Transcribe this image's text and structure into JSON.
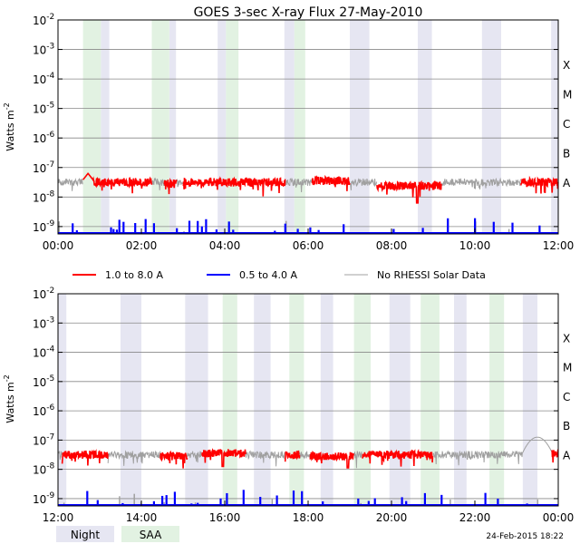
{
  "title": "GOES 3-sec X-ray Flux   27-May-2010",
  "ylabel": "Watts m",
  "ylabel_exp": "-2",
  "footer_date": "24-Feb-2015 18:22",
  "colors": {
    "long": "#ff0000",
    "short": "#0000ff",
    "no_rhessi": "#a0a0a0",
    "night": "#e6e6f2",
    "saa": "#e2f2e2",
    "grid": "#888888"
  },
  "legend": {
    "long": "1.0 to 8.0 A",
    "short": "0.5 to 4.0 A",
    "no_rhessi": "No RHESSI Solar Data",
    "night": "Night",
    "saa": "SAA"
  },
  "y_ticks": [
    {
      "exp": -2,
      "base": "10",
      "sup": "-2"
    },
    {
      "exp": -3,
      "base": "10",
      "sup": "-3"
    },
    {
      "exp": -4,
      "base": "10",
      "sup": "-4"
    },
    {
      "exp": -5,
      "base": "10",
      "sup": "-5"
    },
    {
      "exp": -6,
      "base": "10",
      "sup": "-6"
    },
    {
      "exp": -7,
      "base": "10",
      "sup": "-7"
    },
    {
      "exp": -8,
      "base": "10",
      "sup": "-8"
    },
    {
      "exp": -9,
      "base": "10",
      "sup": "-9"
    }
  ],
  "flare_classes": [
    {
      "label": "X",
      "exp": -4
    },
    {
      "label": "M",
      "exp": -5
    },
    {
      "label": "C",
      "exp": -6
    },
    {
      "label": "B",
      "exp": -7
    },
    {
      "label": "A",
      "exp": -8
    }
  ],
  "chart_data": [
    {
      "type": "line",
      "panel": "top",
      "x_range_hours": [
        0,
        12
      ],
      "x_ticks": [
        "00:00",
        "02:00",
        "04:00",
        "06:00",
        "08:00",
        "10:00",
        "12:00"
      ],
      "y_log_range": [
        -9.25,
        -2
      ],
      "night_intervals": [
        [
          1.03,
          1.23
        ],
        [
          2.67,
          2.83
        ],
        [
          3.83,
          4.03
        ],
        [
          5.43,
          5.67
        ],
        [
          7.0,
          7.47
        ],
        [
          8.63,
          8.97
        ],
        [
          10.17,
          10.63
        ],
        [
          11.83,
          12.0
        ]
      ],
      "saa_intervals": [
        [
          0.6,
          1.03
        ],
        [
          2.25,
          2.67
        ],
        [
          4.03,
          4.33
        ],
        [
          5.67,
          5.93
        ]
      ],
      "long_segments": [
        {
          "start": 0.6,
          "end": 2.25,
          "level": -7.5,
          "peak": {
            "time": 0.72,
            "value": -7.2
          }
        },
        {
          "start": 2.55,
          "end": 2.85,
          "level": -7.55
        },
        {
          "start": 3.0,
          "end": 5.45,
          "level": -7.5
        },
        {
          "start": 6.1,
          "end": 7.0,
          "level": -7.45
        },
        {
          "start": 7.65,
          "end": 9.2,
          "level": -7.62,
          "dip": {
            "time": 8.62,
            "value": -8.2
          }
        },
        {
          "start": 11.1,
          "end": 12.0,
          "level": -7.5
        }
      ],
      "short_bursts": [
        0.35,
        0.45,
        1.27,
        1.33,
        1.41,
        1.47,
        1.57,
        1.85,
        2.1,
        2.3,
        2.85,
        3.15,
        3.35,
        3.45,
        3.55,
        3.8,
        4.1,
        4.2,
        4.45,
        5.2,
        5.45,
        5.75,
        6.05,
        6.25,
        6.85,
        8.05,
        8.75,
        9.35,
        10.0,
        10.45,
        10.9,
        11.25,
        11.55
      ],
      "rhessi_gaps": [
        [
          0.0,
          0.6
        ],
        [
          2.25,
          2.55
        ],
        [
          2.85,
          3.0
        ],
        [
          5.45,
          6.1
        ],
        [
          7.0,
          7.65
        ],
        [
          9.2,
          11.1
        ]
      ]
    },
    {
      "type": "line",
      "panel": "bottom",
      "x_range_hours": [
        12,
        24
      ],
      "x_ticks": [
        "12:00",
        "14:00",
        "16:00",
        "18:00",
        "20:00",
        "22:00",
        "00:00"
      ],
      "y_log_range": [
        -9.25,
        -2
      ],
      "night_intervals": [
        [
          12.0,
          12.2
        ],
        [
          13.5,
          14.0
        ],
        [
          15.05,
          15.6
        ],
        [
          16.7,
          17.1
        ],
        [
          18.3,
          18.6
        ],
        [
          19.95,
          20.45
        ],
        [
          21.5,
          21.8
        ],
        [
          23.15,
          23.5
        ]
      ],
      "saa_intervals": [
        [
          15.95,
          16.3
        ],
        [
          17.55,
          17.9
        ],
        [
          19.1,
          19.5
        ],
        [
          20.7,
          21.15
        ],
        [
          22.35,
          22.7
        ]
      ],
      "long_segments": [
        {
          "start": 12.1,
          "end": 13.2,
          "level": -7.5
        },
        {
          "start": 14.45,
          "end": 15.1,
          "level": -7.55
        },
        {
          "start": 15.45,
          "end": 16.5,
          "level": -7.45,
          "dip": {
            "time": 15.95,
            "value": -7.9
          }
        },
        {
          "start": 17.45,
          "end": 17.8,
          "level": -7.5
        },
        {
          "start": 18.05,
          "end": 19.1,
          "level": -7.55,
          "dip": {
            "time": 18.95,
            "value": -7.95
          }
        },
        {
          "start": 19.3,
          "end": 21.0,
          "level": -7.5
        },
        {
          "start": 23.85,
          "end": 24.0,
          "level": -7.45
        }
      ],
      "short_bursts": [
        12.7,
        12.95,
        13.55,
        14.3,
        14.5,
        14.6,
        14.8,
        15.2,
        15.35,
        15.9,
        16.05,
        16.45,
        16.85,
        17.25,
        17.65,
        17.85,
        18.35,
        19.2,
        19.45,
        19.6,
        20.25,
        20.35,
        20.8,
        21.2,
        22.25,
        22.55,
        23.05,
        23.25
      ],
      "rhessi_gaps": [
        [
          12.0,
          12.1
        ],
        [
          13.2,
          14.45
        ],
        [
          15.1,
          15.45
        ],
        [
          16.5,
          17.45
        ],
        [
          17.8,
          18.05
        ],
        [
          19.1,
          19.3
        ],
        [
          21.0,
          23.85
        ]
      ],
      "rhessi_bump": {
        "start": 23.15,
        "end": 23.9,
        "peak_time": 23.5,
        "peak_value": -6.9
      }
    }
  ]
}
